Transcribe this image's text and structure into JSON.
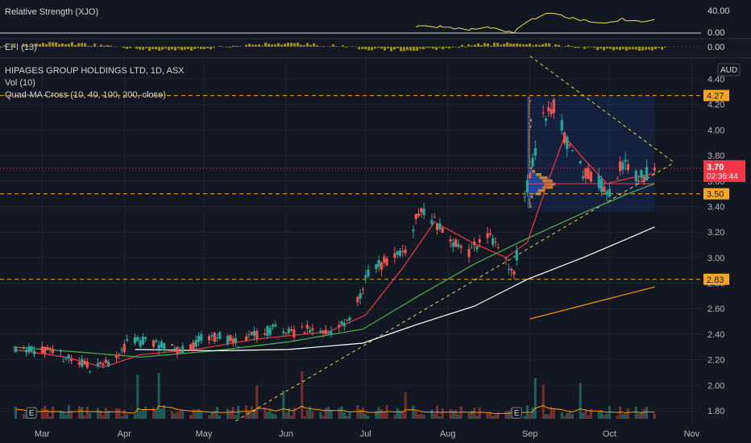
{
  "chart_data": {
    "type": "candlestick",
    "title": "HIPAGES GROUP HOLDINGS LTD, 1D, ASX",
    "indicators": [
      "Vol (10)",
      "Quad-MA Cross (10, 40, 100, 200, close)"
    ],
    "currency": "AUD",
    "last_price": "3.70",
    "countdown": "02:36:44",
    "ylim": [
      1.72,
      4.42
    ],
    "y_ticks": [
      "4.40",
      "4.20",
      "4.00",
      "3.80",
      "3.60",
      "3.40",
      "3.20",
      "3.00",
      "2.80",
      "2.60",
      "2.40",
      "2.20",
      "2.00",
      "1.80"
    ],
    "x_axis_labels": [
      "Mar",
      "Apr",
      "May",
      "Jun",
      "Jul",
      "Aug",
      "Sep",
      "Oct",
      "Nov"
    ],
    "horizontal_levels": [
      {
        "label": "4.27",
        "value": 4.27
      },
      {
        "label": "3.50",
        "value": 3.5
      },
      {
        "label": "2.83",
        "value": 2.83
      }
    ],
    "earnings_markers": [
      "E",
      "E"
    ],
    "price_anchors": [
      [
        "2021-02-19",
        2.3
      ],
      [
        "2021-02-26",
        2.28
      ],
      [
        "2021-03-05",
        2.25
      ],
      [
        "2021-03-12",
        2.2
      ],
      [
        "2021-03-19",
        2.15
      ],
      [
        "2021-03-26",
        2.18
      ],
      [
        "2021-04-02",
        2.32
      ],
      [
        "2021-04-09",
        2.35
      ],
      [
        "2021-04-16",
        2.3
      ],
      [
        "2021-04-23",
        2.27
      ],
      [
        "2021-04-30",
        2.36
      ],
      [
        "2021-05-07",
        2.38
      ],
      [
        "2021-05-14",
        2.34
      ],
      [
        "2021-05-21",
        2.4
      ],
      [
        "2021-05-28",
        2.44
      ],
      [
        "2021-06-04",
        2.4
      ],
      [
        "2021-06-11",
        2.45
      ],
      [
        "2021-06-18",
        2.42
      ],
      [
        "2021-06-25",
        2.5
      ],
      [
        "2021-07-02",
        2.9
      ],
      [
        "2021-07-09",
        2.97
      ],
      [
        "2021-07-16",
        3.05
      ],
      [
        "2021-07-21",
        3.38
      ],
      [
        "2021-07-26",
        3.3
      ],
      [
        "2021-08-02",
        3.15
      ],
      [
        "2021-08-09",
        3.05
      ],
      [
        "2021-08-16",
        3.2
      ],
      [
        "2021-08-23",
        2.95
      ],
      [
        "2021-08-26",
        2.88
      ],
      [
        "2021-08-31",
        3.55
      ],
      [
        "2021-09-06",
        4.1
      ],
      [
        "2021-09-10",
        4.2
      ],
      [
        "2021-09-14",
        3.95
      ],
      [
        "2021-09-20",
        3.7
      ],
      [
        "2021-09-27",
        3.58
      ],
      [
        "2021-10-01",
        3.52
      ],
      [
        "2021-10-06",
        3.75
      ],
      [
        "2021-10-12",
        3.62
      ],
      [
        "2021-10-18",
        3.7
      ]
    ],
    "moving_averages": [
      {
        "name": "MA 10",
        "color": "#f23645",
        "points": [
          [
            "2021-02-18",
            2.28
          ],
          [
            "2021-03-10",
            2.22
          ],
          [
            "2021-03-24",
            2.14
          ],
          [
            "2021-04-07",
            2.24
          ],
          [
            "2021-04-28",
            2.28
          ],
          [
            "2021-05-20",
            2.36
          ],
          [
            "2021-06-17",
            2.42
          ],
          [
            "2021-07-01",
            2.55
          ],
          [
            "2021-07-15",
            2.92
          ],
          [
            "2021-07-27",
            3.28
          ],
          [
            "2021-08-10",
            3.12
          ],
          [
            "2021-08-23",
            3.0
          ],
          [
            "2021-08-31",
            3.12
          ],
          [
            "2021-09-07",
            3.55
          ],
          [
            "2021-09-14",
            3.95
          ],
          [
            "2021-09-21",
            3.78
          ],
          [
            "2021-09-30",
            3.58
          ],
          [
            "2021-10-08",
            3.62
          ],
          [
            "2021-10-18",
            3.66
          ]
        ]
      },
      {
        "name": "MA 40",
        "color": "#4caf50",
        "points": [
          [
            "2021-02-18",
            2.3
          ],
          [
            "2021-03-15",
            2.26
          ],
          [
            "2021-04-07",
            2.22
          ],
          [
            "2021-05-05",
            2.27
          ],
          [
            "2021-06-02",
            2.34
          ],
          [
            "2021-06-30",
            2.44
          ],
          [
            "2021-07-21",
            2.7
          ],
          [
            "2021-08-11",
            2.95
          ],
          [
            "2021-08-31",
            3.15
          ],
          [
            "2021-09-21",
            3.35
          ],
          [
            "2021-10-08",
            3.5
          ],
          [
            "2021-10-18",
            3.58
          ]
        ]
      },
      {
        "name": "MA 100",
        "color": "#ffffff",
        "points": [
          [
            "2021-04-05",
            2.28
          ],
          [
            "2021-05-05",
            2.27
          ],
          [
            "2021-06-02",
            2.28
          ],
          [
            "2021-06-30",
            2.33
          ],
          [
            "2021-07-21",
            2.48
          ],
          [
            "2021-08-11",
            2.62
          ],
          [
            "2021-08-31",
            2.83
          ],
          [
            "2021-09-21",
            3.0
          ],
          [
            "2021-10-08",
            3.15
          ],
          [
            "2021-10-18",
            3.24
          ]
        ]
      },
      {
        "name": "MA 200",
        "color": "#ff9800",
        "points": [
          [
            "2021-09-01",
            2.52
          ],
          [
            "2021-10-18",
            2.77
          ]
        ]
      }
    ],
    "trendlines": [
      {
        "from": [
          "2021-05-13",
          1.72
        ],
        "to": [
          "2021-10-25",
          3.74
        ]
      },
      {
        "from": [
          "2021-09-01",
          4.58
        ],
        "to": [
          "2021-10-25",
          3.75
        ]
      }
    ],
    "panes": [
      {
        "name": "Relative Strength (XJO)",
        "ticks": [
          "40.00",
          "0.00"
        ]
      },
      {
        "name": "EFI (13)",
        "ticks": [
          "0.00"
        ]
      }
    ]
  }
}
